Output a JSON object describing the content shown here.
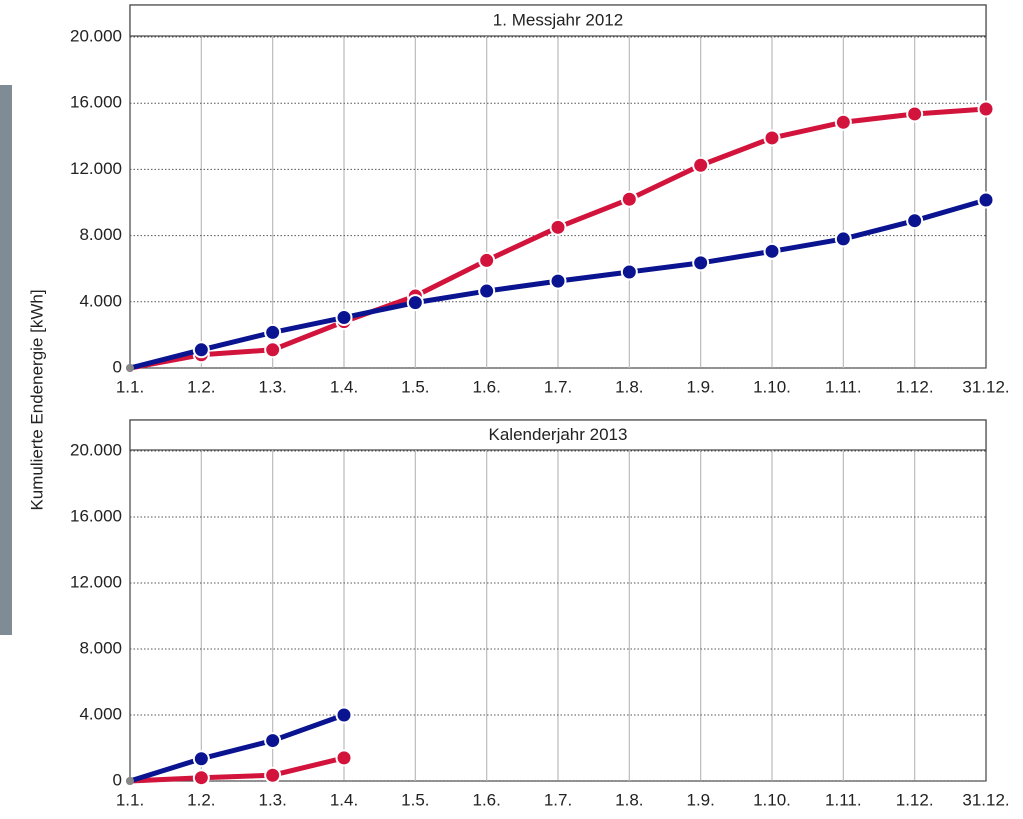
{
  "chart_data": [
    {
      "type": "line",
      "title": "1. Messjahr 2012",
      "ylabel": "Kumulierte Endenergie [kWh]",
      "categories": [
        "1.1.",
        "1.2.",
        "1.3.",
        "1.4.",
        "1.5.",
        "1.6.",
        "1.7.",
        "1.8.",
        "1.9.",
        "1.10.",
        "1.11.",
        "1.12.",
        "31.12."
      ],
      "series": [
        {
          "color": "#d2143c",
          "values": [
            0,
            800,
            1100,
            2800,
            4350,
            6500,
            8500,
            10200,
            12250,
            13900,
            14850,
            15350,
            15650
          ]
        },
        {
          "color": "#0a1490",
          "values": [
            0,
            1100,
            2150,
            3050,
            3950,
            4650,
            5250,
            5800,
            6350,
            7050,
            7800,
            8900,
            10150
          ]
        }
      ],
      "ylim": [
        0,
        20000
      ],
      "yticks": [
        0,
        {
          "value": 4000,
          "label": "4.000"
        },
        {
          "value": 8000,
          "label": "8.000"
        },
        {
          "value": 12000,
          "label": "12.000"
        },
        {
          "value": 16000,
          "label": "16.000"
        },
        {
          "value": 20000,
          "label": "20.000"
        }
      ],
      "grid": true
    },
    {
      "type": "line",
      "title": "Kalenderjahr 2013",
      "categories": [
        "1.1.",
        "1.2.",
        "1.3.",
        "1.4.",
        "1.5.",
        "1.6.",
        "1.7.",
        "1.8.",
        "1.9.",
        "1.10.",
        "1.11.",
        "1.12.",
        "31.12."
      ],
      "series": [
        {
          "color": "#d2143c",
          "values": [
            0,
            200,
            350,
            1400,
            null,
            null,
            null,
            null,
            null,
            null,
            null,
            null,
            null
          ]
        },
        {
          "color": "#0a1490",
          "values": [
            0,
            1350,
            2450,
            4000,
            null,
            null,
            null,
            null,
            null,
            null,
            null,
            null,
            null
          ]
        }
      ],
      "ylim": [
        0,
        20000
      ],
      "yticks": [
        0,
        {
          "value": 4000,
          "label": "4.000"
        },
        {
          "value": 8000,
          "label": "8.000"
        },
        {
          "value": 12000,
          "label": "12.000"
        },
        {
          "value": 16000,
          "label": "16.000"
        },
        {
          "value": 20000,
          "label": "20.000"
        }
      ],
      "grid": true
    }
  ]
}
